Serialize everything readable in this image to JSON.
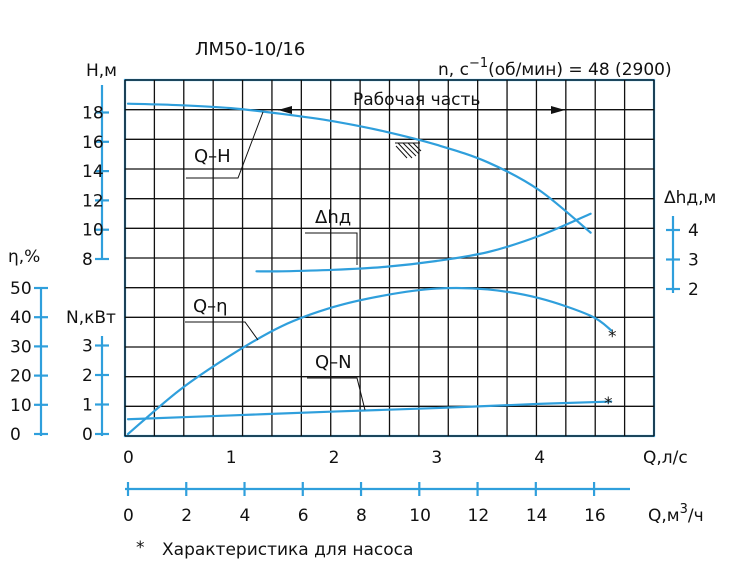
{
  "chart_data": {
    "type": "line",
    "title": "ЛМ50-10/16",
    "speed_note": "n, c",
    "speed_exp": "−1",
    "speed_rest": "(об/мин) = 48 (2900)",
    "working_range_label": "Рабочая часть",
    "footnote_star": "*",
    "footnote": "Характеристика для насоса",
    "colors": {
      "curve": "#2f9fdc",
      "grid": "#111111"
    },
    "axes": {
      "x_q_ls": {
        "label": "Q,л/с",
        "ticks": [
          "0",
          "1",
          "2",
          "3",
          "4"
        ],
        "range": [
          0,
          5
        ]
      },
      "x_q_m3h": {
        "label_prefix": "Q,м",
        "label_exp": "3",
        "label_suffix": "/ч",
        "ticks": [
          "0",
          "2",
          "4",
          "6",
          "8",
          "10",
          "12",
          "14",
          "16"
        ],
        "range": [
          0,
          17.5
        ]
      },
      "y_head": {
        "label": "Н,м",
        "ticks": [
          "8",
          "10",
          "12",
          "14",
          "16",
          "18"
        ],
        "range": [
          8,
          19
        ]
      },
      "y_dh": {
        "label": "Δhд,м",
        "ticks": [
          "2",
          "3",
          "4"
        ]
      },
      "y_eff": {
        "label": "η,%",
        "ticks": [
          "0",
          "10",
          "20",
          "30",
          "40",
          "50"
        ]
      },
      "y_power": {
        "label": "N,кВт",
        "ticks": [
          "0",
          "1",
          "2",
          "3"
        ]
      }
    },
    "series": [
      {
        "name": "Q–H",
        "unit": "м",
        "x": [
          0,
          0.5,
          1.0,
          1.5,
          2.0,
          2.5,
          3.0,
          3.5,
          4.0,
          4.5
        ],
        "y": [
          18.6,
          18.5,
          18.3,
          17.9,
          17.4,
          16.7,
          15.8,
          14.6,
          12.7,
          9.8
        ]
      },
      {
        "name": "Δhд",
        "unit": "м",
        "x": [
          1.25,
          1.5,
          2.0,
          2.5,
          3.0,
          3.5,
          4.0,
          4.5
        ],
        "y": [
          2.6,
          2.6,
          2.65,
          2.75,
          2.95,
          3.25,
          3.8,
          4.55
        ]
      },
      {
        "name": "Q–η",
        "unit": "%",
        "x": [
          0,
          0.5,
          1.0,
          1.5,
          2.0,
          2.5,
          3.0,
          3.5,
          4.0,
          4.5,
          4.7
        ],
        "y": [
          0,
          15,
          27,
          37,
          43.5,
          47.5,
          49.8,
          49.5,
          46.5,
          40.5,
          35.5
        ]
      },
      {
        "name": "Q–N",
        "unit": "кВт",
        "x": [
          0,
          1.0,
          2.0,
          3.0,
          4.0,
          4.7
        ],
        "y": [
          0.5,
          0.63,
          0.76,
          0.88,
          1.02,
          1.1
        ]
      }
    ],
    "grid": true
  }
}
